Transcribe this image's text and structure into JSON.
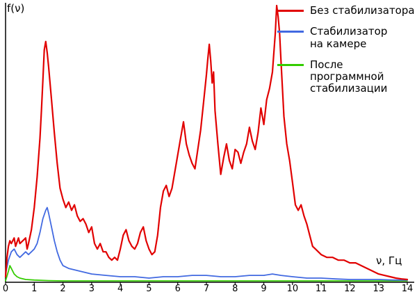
{
  "figure": {
    "background": "#ffffff"
  },
  "legend": {
    "items": [
      {
        "lines": [
          "Без стабилизатора"
        ]
      },
      {
        "lines": [
          "Стабилизатор",
          "на камере"
        ]
      },
      {
        "lines": [
          "После программной",
          "стабилизации"
        ]
      }
    ]
  },
  "chart_data": {
    "type": "line",
    "title": "",
    "xlabel": "ν, Гц",
    "ylabel": "f(ν)",
    "xlim": [
      0,
      14
    ],
    "ylim": [
      0,
      100
    ],
    "x_ticks": [
      0,
      1,
      2,
      3,
      4,
      5,
      6,
      7,
      8,
      9,
      10,
      11,
      12,
      13,
      14
    ],
    "grid": false,
    "legend_position": "top-right",
    "y_units": "relative amplitude (y axis unlabeled, 100 = max of red curve)",
    "series": [
      {
        "name": "Без стабилизатора",
        "color": "#e10000",
        "points": [
          [
            0,
            2
          ],
          [
            0.05,
            9
          ],
          [
            0.1,
            13
          ],
          [
            0.15,
            15
          ],
          [
            0.2,
            14
          ],
          [
            0.3,
            16
          ],
          [
            0.35,
            13
          ],
          [
            0.45,
            16
          ],
          [
            0.5,
            14
          ],
          [
            0.6,
            15
          ],
          [
            0.7,
            16
          ],
          [
            0.75,
            12
          ],
          [
            0.8,
            14
          ],
          [
            0.9,
            19
          ],
          [
            1.0,
            27
          ],
          [
            1.1,
            38
          ],
          [
            1.2,
            52
          ],
          [
            1.25,
            62
          ],
          [
            1.3,
            73
          ],
          [
            1.35,
            84
          ],
          [
            1.4,
            87
          ],
          [
            1.45,
            83
          ],
          [
            1.5,
            78
          ],
          [
            1.6,
            66
          ],
          [
            1.7,
            54
          ],
          [
            1.8,
            43
          ],
          [
            1.9,
            34
          ],
          [
            2.0,
            30
          ],
          [
            2.1,
            27
          ],
          [
            2.2,
            29
          ],
          [
            2.3,
            26
          ],
          [
            2.4,
            28
          ],
          [
            2.5,
            24
          ],
          [
            2.6,
            22
          ],
          [
            2.7,
            23
          ],
          [
            2.8,
            21
          ],
          [
            2.9,
            18
          ],
          [
            3.0,
            20
          ],
          [
            3.1,
            14
          ],
          [
            3.2,
            12
          ],
          [
            3.3,
            14
          ],
          [
            3.4,
            11
          ],
          [
            3.5,
            11
          ],
          [
            3.6,
            9
          ],
          [
            3.7,
            8
          ],
          [
            3.8,
            9
          ],
          [
            3.9,
            8
          ],
          [
            4.0,
            12
          ],
          [
            4.1,
            17
          ],
          [
            4.2,
            19
          ],
          [
            4.3,
            15
          ],
          [
            4.4,
            13
          ],
          [
            4.5,
            12
          ],
          [
            4.6,
            14
          ],
          [
            4.7,
            18
          ],
          [
            4.8,
            20
          ],
          [
            4.9,
            15
          ],
          [
            5.0,
            12
          ],
          [
            5.1,
            10
          ],
          [
            5.2,
            11
          ],
          [
            5.3,
            17
          ],
          [
            5.4,
            27
          ],
          [
            5.5,
            33
          ],
          [
            5.6,
            35
          ],
          [
            5.7,
            31
          ],
          [
            5.8,
            34
          ],
          [
            5.9,
            40
          ],
          [
            6.0,
            46
          ],
          [
            6.1,
            52
          ],
          [
            6.2,
            58
          ],
          [
            6.3,
            50
          ],
          [
            6.4,
            46
          ],
          [
            6.5,
            43
          ],
          [
            6.6,
            41
          ],
          [
            6.7,
            48
          ],
          [
            6.8,
            55
          ],
          [
            6.9,
            65
          ],
          [
            7.0,
            75
          ],
          [
            7.05,
            81
          ],
          [
            7.1,
            86
          ],
          [
            7.15,
            80
          ],
          [
            7.2,
            72
          ],
          [
            7.25,
            76
          ],
          [
            7.3,
            62
          ],
          [
            7.4,
            50
          ],
          [
            7.5,
            39
          ],
          [
            7.6,
            45
          ],
          [
            7.7,
            50
          ],
          [
            7.8,
            44
          ],
          [
            7.9,
            41
          ],
          [
            8.0,
            48
          ],
          [
            8.1,
            47
          ],
          [
            8.2,
            43
          ],
          [
            8.3,
            47
          ],
          [
            8.4,
            50
          ],
          [
            8.5,
            56
          ],
          [
            8.6,
            51
          ],
          [
            8.7,
            48
          ],
          [
            8.8,
            54
          ],
          [
            8.9,
            63
          ],
          [
            9.0,
            57
          ],
          [
            9.1,
            66
          ],
          [
            9.2,
            70
          ],
          [
            9.3,
            76
          ],
          [
            9.4,
            90
          ],
          [
            9.45,
            100
          ],
          [
            9.5,
            96
          ],
          [
            9.55,
            90
          ],
          [
            9.6,
            80
          ],
          [
            9.7,
            60
          ],
          [
            9.8,
            50
          ],
          [
            9.9,
            44
          ],
          [
            10.0,
            36
          ],
          [
            10.1,
            28
          ],
          [
            10.2,
            26
          ],
          [
            10.3,
            28
          ],
          [
            10.4,
            24
          ],
          [
            10.5,
            21
          ],
          [
            10.6,
            17
          ],
          [
            10.7,
            13
          ],
          [
            10.8,
            12
          ],
          [
            10.9,
            11
          ],
          [
            11.0,
            10
          ],
          [
            11.2,
            9
          ],
          [
            11.4,
            9
          ],
          [
            11.6,
            8
          ],
          [
            11.8,
            8
          ],
          [
            12.0,
            7
          ],
          [
            12.2,
            7
          ],
          [
            12.4,
            6
          ],
          [
            12.6,
            5
          ],
          [
            12.8,
            4
          ],
          [
            13.0,
            3
          ],
          [
            13.2,
            2.5
          ],
          [
            13.4,
            2
          ],
          [
            13.6,
            1.5
          ],
          [
            13.8,
            1.2
          ],
          [
            14.0,
            1
          ]
        ]
      },
      {
        "name": "Стабилизатор на камере",
        "color": "#4169e1",
        "points": [
          [
            0,
            3
          ],
          [
            0.1,
            8
          ],
          [
            0.2,
            11
          ],
          [
            0.3,
            12
          ],
          [
            0.4,
            10
          ],
          [
            0.5,
            9
          ],
          [
            0.6,
            10
          ],
          [
            0.7,
            11
          ],
          [
            0.8,
            10
          ],
          [
            0.9,
            11
          ],
          [
            1.0,
            12
          ],
          [
            1.1,
            14
          ],
          [
            1.2,
            18
          ],
          [
            1.3,
            23
          ],
          [
            1.4,
            26
          ],
          [
            1.45,
            27
          ],
          [
            1.5,
            25
          ],
          [
            1.6,
            20
          ],
          [
            1.7,
            15
          ],
          [
            1.8,
            11
          ],
          [
            1.9,
            8
          ],
          [
            2.0,
            6
          ],
          [
            2.2,
            5
          ],
          [
            2.4,
            4.5
          ],
          [
            2.6,
            4
          ],
          [
            2.8,
            3.5
          ],
          [
            3.0,
            3
          ],
          [
            3.5,
            2.5
          ],
          [
            4.0,
            2
          ],
          [
            4.5,
            2
          ],
          [
            5.0,
            1.5
          ],
          [
            5.5,
            2
          ],
          [
            6.0,
            2
          ],
          [
            6.5,
            2.5
          ],
          [
            7.0,
            2.5
          ],
          [
            7.5,
            2
          ],
          [
            8.0,
            2
          ],
          [
            8.5,
            2.5
          ],
          [
            9.0,
            2.5
          ],
          [
            9.3,
            3
          ],
          [
            9.6,
            2.5
          ],
          [
            10.0,
            2
          ],
          [
            10.5,
            1.5
          ],
          [
            11.0,
            1.5
          ],
          [
            11.5,
            1.2
          ],
          [
            12.0,
            1
          ],
          [
            12.5,
            1
          ],
          [
            13.0,
            1
          ],
          [
            13.5,
            0.8
          ],
          [
            14.0,
            0.8
          ]
        ]
      },
      {
        "name": "После программной стабилизации",
        "color": "#33cc00",
        "points": [
          [
            0,
            0.5
          ],
          [
            0.1,
            4
          ],
          [
            0.15,
            6
          ],
          [
            0.2,
            5
          ],
          [
            0.3,
            3
          ],
          [
            0.4,
            2
          ],
          [
            0.5,
            1.5
          ],
          [
            0.7,
            1
          ],
          [
            1.0,
            0.8
          ],
          [
            1.5,
            0.6
          ],
          [
            2.0,
            0.5
          ],
          [
            3.0,
            0.5
          ],
          [
            4.0,
            0.5
          ],
          [
            5.0,
            0.5
          ],
          [
            6.0,
            0.5
          ],
          [
            7.0,
            0.5
          ],
          [
            8.0,
            0.5
          ],
          [
            9.0,
            0.5
          ],
          [
            10.0,
            0.5
          ],
          [
            11.0,
            0.5
          ],
          [
            12.0,
            0.5
          ],
          [
            13.0,
            0.5
          ],
          [
            14.0,
            0.5
          ]
        ]
      }
    ]
  }
}
